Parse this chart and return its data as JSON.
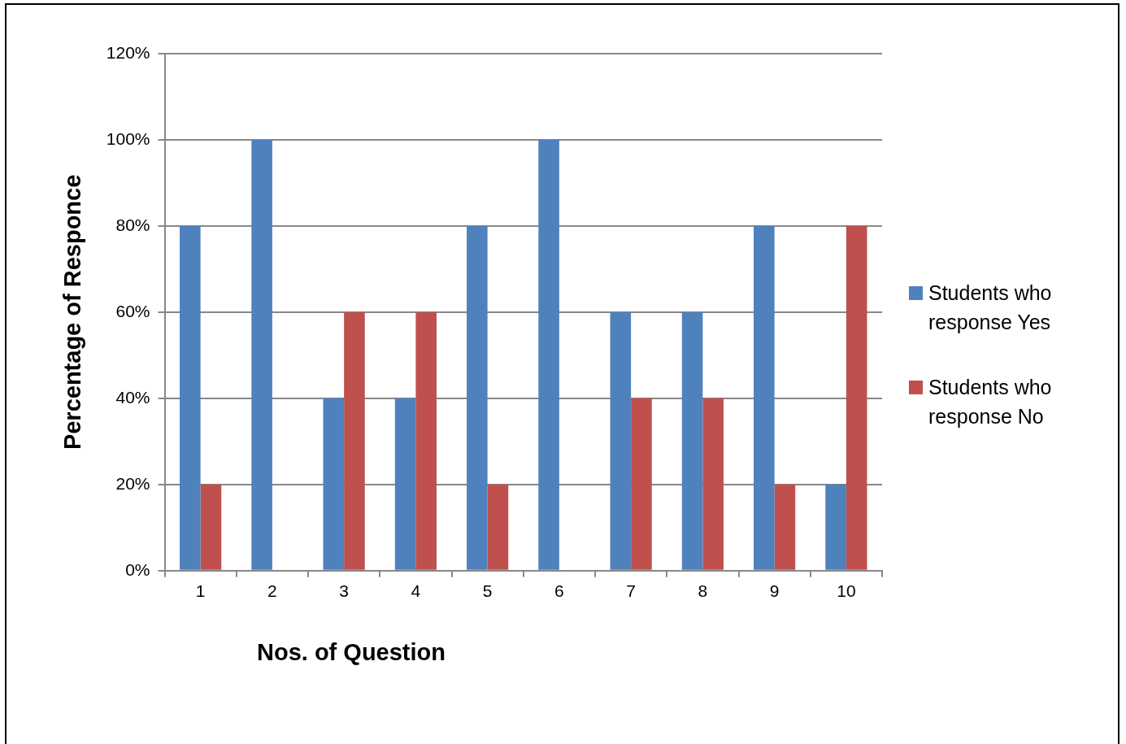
{
  "chart_data": {
    "type": "bar",
    "xlabel": "Nos. of Question",
    "ylabel": "Percentage of Responce",
    "categories": [
      "1",
      "2",
      "3",
      "4",
      "5",
      "6",
      "7",
      "8",
      "9",
      "10"
    ],
    "series": [
      {
        "name": "Students who response Yes",
        "color": "#4f81bd",
        "values": [
          80,
          100,
          40,
          40,
          80,
          100,
          60,
          60,
          80,
          20
        ]
      },
      {
        "name": "Students who response No",
        "color": "#c0504d",
        "values": [
          20,
          0,
          60,
          60,
          20,
          0,
          40,
          40,
          20,
          80
        ]
      }
    ],
    "ylim": [
      0,
      120
    ],
    "yticks": [
      {
        "value": 0,
        "label": "0%"
      },
      {
        "value": 20,
        "label": "20%"
      },
      {
        "value": 40,
        "label": "40%"
      },
      {
        "value": 60,
        "label": "60%"
      },
      {
        "value": 80,
        "label": "80%"
      },
      {
        "value": 100,
        "label": "100%"
      },
      {
        "value": 120,
        "label": "120%"
      }
    ],
    "grid": "y",
    "legend": "right"
  }
}
